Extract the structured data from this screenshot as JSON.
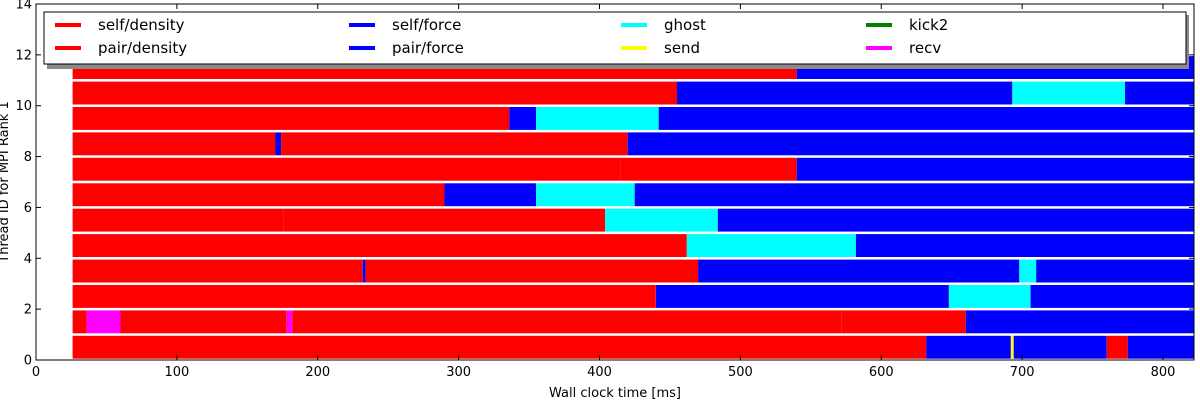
{
  "chart_data": {
    "type": "bar",
    "subtype": "task-timeline",
    "title": "",
    "xlabel": "Wall clock time [ms]",
    "ylabel": "Thread ID for MPI Rank 1",
    "xlim": [
      0,
      822
    ],
    "ylim": [
      0,
      14
    ],
    "xticks": [
      0,
      100,
      200,
      300,
      400,
      500,
      600,
      700,
      800
    ],
    "yticks": [
      0,
      2,
      4,
      6,
      8,
      10,
      12,
      14
    ],
    "grid": false,
    "legend_position": "top",
    "legend": [
      {
        "label": "self/density",
        "color": "#ff0000"
      },
      {
        "label": "pair/density",
        "color": "#ff0000"
      },
      {
        "label": "self/force",
        "color": "#0000ff"
      },
      {
        "label": "pair/force",
        "color": "#0000ff"
      },
      {
        "label": "ghost",
        "color": "#00ffff"
      },
      {
        "label": "send",
        "color": "#ffff00"
      },
      {
        "label": "kick2",
        "color": "#008000"
      },
      {
        "label": "recv",
        "color": "#ff00ff"
      }
    ],
    "threads": [
      {
        "thread": 0,
        "segments": [
          [
            26,
            632,
            "pair/density"
          ],
          [
            632,
            692,
            "pair/force"
          ],
          [
            692,
            694,
            "send"
          ],
          [
            694,
            760,
            "pair/force"
          ],
          [
            760,
            775,
            "pair/density"
          ],
          [
            775,
            822,
            "pair/force"
          ]
        ]
      },
      {
        "thread": 1,
        "segments": [
          [
            26,
            36,
            "pair/density"
          ],
          [
            36,
            60,
            "recv"
          ],
          [
            60,
            178,
            "pair/density"
          ],
          [
            178,
            182,
            "recv"
          ],
          [
            182,
            572,
            "pair/density"
          ],
          [
            572,
            660,
            "pair/density"
          ],
          [
            660,
            822,
            "pair/force"
          ]
        ]
      },
      {
        "thread": 2,
        "segments": [
          [
            26,
            440,
            "pair/density"
          ],
          [
            440,
            648,
            "pair/force"
          ],
          [
            648,
            706,
            "ghost"
          ],
          [
            706,
            822,
            "pair/force"
          ]
        ]
      },
      {
        "thread": 3,
        "segments": [
          [
            26,
            232,
            "pair/density"
          ],
          [
            232,
            234,
            "pair/force"
          ],
          [
            234,
            470,
            "pair/density"
          ],
          [
            470,
            698,
            "pair/force"
          ],
          [
            698,
            710,
            "ghost"
          ],
          [
            710,
            822,
            "pair/force"
          ]
        ]
      },
      {
        "thread": 4,
        "segments": [
          [
            26,
            462,
            "pair/density"
          ],
          [
            462,
            582,
            "ghost"
          ],
          [
            582,
            822,
            "pair/force"
          ]
        ]
      },
      {
        "thread": 5,
        "segments": [
          [
            26,
            176,
            "pair/density"
          ],
          [
            176,
            296,
            "pair/density"
          ],
          [
            296,
            404,
            "pair/density"
          ],
          [
            404,
            484,
            "ghost"
          ],
          [
            484,
            822,
            "pair/force"
          ]
        ]
      },
      {
        "thread": 6,
        "segments": [
          [
            26,
            290,
            "pair/density"
          ],
          [
            290,
            355,
            "pair/force"
          ],
          [
            355,
            425,
            "ghost"
          ],
          [
            425,
            822,
            "pair/force"
          ]
        ]
      },
      {
        "thread": 7,
        "segments": [
          [
            26,
            415,
            "pair/density"
          ],
          [
            415,
            540,
            "pair/density"
          ],
          [
            540,
            822,
            "pair/force"
          ]
        ]
      },
      {
        "thread": 8,
        "segments": [
          [
            26,
            170,
            "pair/density"
          ],
          [
            170,
            174,
            "pair/force"
          ],
          [
            174,
            420,
            "pair/density"
          ],
          [
            420,
            822,
            "pair/force"
          ]
        ]
      },
      {
        "thread": 9,
        "segments": [
          [
            26,
            336,
            "pair/density"
          ],
          [
            336,
            355,
            "pair/force"
          ],
          [
            355,
            442,
            "ghost"
          ],
          [
            442,
            822,
            "pair/force"
          ]
        ]
      },
      {
        "thread": 10,
        "segments": [
          [
            26,
            455,
            "pair/density"
          ],
          [
            455,
            693,
            "pair/force"
          ],
          [
            693,
            773,
            "ghost"
          ],
          [
            773,
            822,
            "pair/force"
          ]
        ]
      },
      {
        "thread": 11,
        "segments": [
          [
            26,
            540,
            "pair/density"
          ],
          [
            540,
            822,
            "pair/force"
          ]
        ]
      }
    ]
  }
}
